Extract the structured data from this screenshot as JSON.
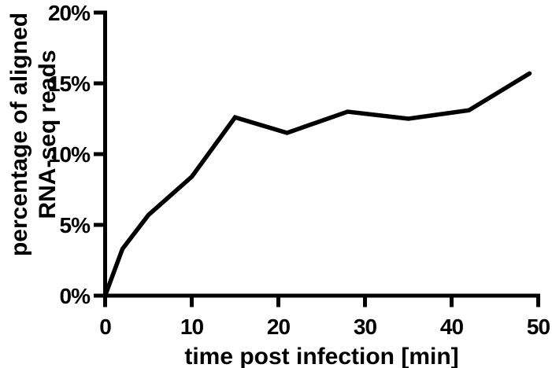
{
  "figure": {
    "background": "#ffffff",
    "axis_color": "#000000"
  },
  "chart_data": {
    "type": "line",
    "title": "",
    "xlabel": "time post infection [min]",
    "ylabel_line1": "percentage of aligned",
    "ylabel_line2": "RNA-seq reads",
    "x": [
      0,
      2,
      5,
      10,
      15,
      21,
      28,
      35,
      42,
      49
    ],
    "y_percent": [
      0,
      3.3,
      5.7,
      8.4,
      12.6,
      11.5,
      13.0,
      12.5,
      13.1,
      15.7
    ],
    "series_name": "percentage of aligned RNA-seq reads",
    "line_color": "#000000",
    "line_width": 5.5,
    "xlim": [
      0,
      50
    ],
    "ylim_percent": [
      0,
      20
    ],
    "x_ticks": [
      0,
      10,
      20,
      30,
      40,
      50
    ],
    "x_tick_labels": [
      "0",
      "10",
      "20",
      "30",
      "40",
      "50"
    ],
    "y_ticks": [
      0,
      5,
      10,
      15,
      20
    ],
    "y_tick_labels": [
      "0%",
      "5%",
      "10%",
      "15%",
      "20%"
    ],
    "grid": false,
    "legend": "none"
  }
}
